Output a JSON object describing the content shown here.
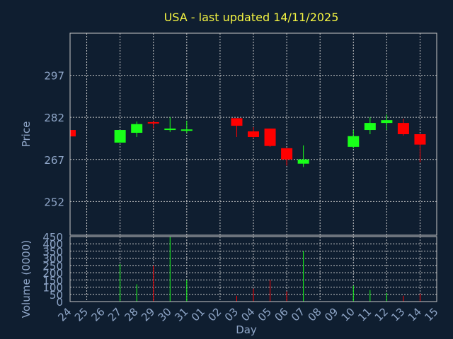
{
  "chart_data": {
    "type": "candlestick",
    "title": "USA - last updated 14/11/2025",
    "xlabel": "Day",
    "ylabel_price": "Price",
    "ylabel_volume": "Volume (0000)",
    "x_ticks": [
      "24",
      "25",
      "26",
      "27",
      "28",
      "29",
      "30",
      "31",
      "01",
      "02",
      "03",
      "04",
      "05",
      "06",
      "07",
      "08",
      "09",
      "10",
      "11",
      "12",
      "13",
      "14",
      "15"
    ],
    "price_ticks": [
      252,
      267,
      282,
      297
    ],
    "price_ylim": [
      240,
      312
    ],
    "volume_ticks": [
      0,
      50,
      100,
      150,
      200,
      250,
      300,
      350,
      400,
      450
    ],
    "volume_ylim": [
      0,
      450
    ],
    "grid": true,
    "colors": {
      "background": "#0f1e30",
      "up": "#19ff19",
      "down": "#ff0000",
      "title": "#f5f542",
      "text": "#8fa6c8",
      "grid": "#c8c8c8"
    },
    "candles": [
      {
        "day": "24",
        "open": 277.5,
        "high": 277.5,
        "low": 275.2,
        "close": 275.2,
        "volume": 2
      },
      {
        "day": "27",
        "open": 273.0,
        "high": 277.5,
        "low": 273.0,
        "close": 277.5,
        "volume": 260
      },
      {
        "day": "28",
        "open": 276.5,
        "high": 280.5,
        "low": 275.0,
        "close": 279.6,
        "volume": 120
      },
      {
        "day": "29",
        "open": 280.3,
        "high": 280.8,
        "low": 278.0,
        "close": 279.9,
        "volume": 250
      },
      {
        "day": "30",
        "open": 277.5,
        "high": 282.0,
        "low": 276.8,
        "close": 278.0,
        "volume": 450
      },
      {
        "day": "31",
        "open": 277.3,
        "high": 280.8,
        "low": 276.5,
        "close": 277.7,
        "volume": 150
      },
      {
        "day": "03",
        "open": 281.7,
        "high": 281.7,
        "low": 275.0,
        "close": 279.0,
        "volume": 40
      },
      {
        "day": "04",
        "open": 277.0,
        "high": 278.5,
        "low": 274.5,
        "close": 275.0,
        "volume": 90
      },
      {
        "day": "05",
        "open": 278.0,
        "high": 278.0,
        "low": 271.5,
        "close": 271.8,
        "volume": 150
      },
      {
        "day": "06",
        "open": 271.0,
        "high": 271.0,
        "low": 264.8,
        "close": 267.0,
        "volume": 70
      },
      {
        "day": "07",
        "open": 265.5,
        "high": 272.0,
        "low": 264.3,
        "close": 267.0,
        "volume": 350
      },
      {
        "day": "10",
        "open": 271.5,
        "high": 277.5,
        "low": 271.0,
        "close": 275.3,
        "volume": 110
      },
      {
        "day": "11",
        "open": 277.5,
        "high": 282.0,
        "low": 276.0,
        "close": 280.0,
        "volume": 80
      },
      {
        "day": "12",
        "open": 280.0,
        "high": 283.0,
        "low": 277.5,
        "close": 281.0,
        "volume": 60
      },
      {
        "day": "13",
        "open": 280.0,
        "high": 281.5,
        "low": 275.5,
        "close": 276.0,
        "volume": 40
      },
      {
        "day": "14",
        "open": 276.0,
        "high": 276.0,
        "low": 266.0,
        "close": 272.3,
        "volume": 55
      }
    ]
  }
}
